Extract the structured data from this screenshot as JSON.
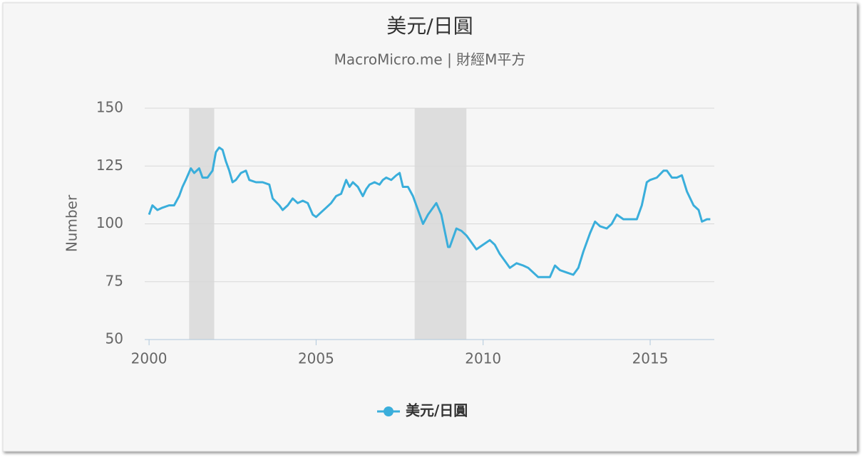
{
  "chart_data": {
    "type": "line",
    "title": "美元/日圓",
    "subtitle": "MacroMicro.me | 財經M平方",
    "y_label": "Number",
    "x": [
      2000.0,
      2000.1,
      2000.25,
      2000.4,
      2000.6,
      2000.75,
      2000.9,
      2001.0,
      2001.1,
      2001.25,
      2001.35,
      2001.5,
      2001.6,
      2001.75,
      2001.9,
      2002.0,
      2002.1,
      2002.2,
      2002.3,
      2002.4,
      2002.5,
      2002.6,
      2002.75,
      2002.9,
      2003.0,
      2003.2,
      2003.4,
      2003.6,
      2003.7,
      2003.9,
      2004.0,
      2004.15,
      2004.3,
      2004.45,
      2004.6,
      2004.75,
      2004.9,
      2005.0,
      2005.15,
      2005.3,
      2005.45,
      2005.6,
      2005.75,
      2005.9,
      2006.0,
      2006.1,
      2006.25,
      2006.4,
      2006.5,
      2006.6,
      2006.75,
      2006.9,
      2007.0,
      2007.1,
      2007.25,
      2007.4,
      2007.5,
      2007.6,
      2007.75,
      2007.9,
      2008.0,
      2008.2,
      2008.35,
      2008.5,
      2008.6,
      2008.75,
      2008.85,
      2008.95,
      2009.0,
      2009.2,
      2009.35,
      2009.5,
      2009.6,
      2009.8,
      2009.9,
      2010.0,
      2010.2,
      2010.35,
      2010.5,
      2010.65,
      2010.8,
      2011.0,
      2011.2,
      2011.35,
      2011.5,
      2011.65,
      2011.8,
      2012.0,
      2012.15,
      2012.3,
      2012.5,
      2012.7,
      2012.85,
      2013.0,
      2013.2,
      2013.35,
      2013.5,
      2013.7,
      2013.85,
      2014.0,
      2014.2,
      2014.4,
      2014.6,
      2014.75,
      2014.9,
      2015.0,
      2015.2,
      2015.4,
      2015.5,
      2015.65,
      2015.8,
      2015.95,
      2016.1,
      2016.3,
      2016.45,
      2016.55,
      2016.7,
      2016.8
    ],
    "series": [
      {
        "name": "美元/日圓",
        "color": "#3aaedb",
        "values": [
          104,
          108,
          106,
          107,
          108,
          108,
          112,
          116,
          119,
          124,
          122,
          124,
          120,
          120,
          123,
          131,
          133,
          132,
          127,
          123,
          118,
          119,
          122,
          123,
          119,
          118,
          118,
          117,
          111,
          108,
          106,
          108,
          111,
          109,
          110,
          109,
          104,
          103,
          105,
          107,
          109,
          112,
          113,
          119,
          116,
          118,
          116,
          112,
          115,
          117,
          118,
          117,
          119,
          120,
          119,
          121,
          122,
          116,
          116,
          112,
          108,
          100,
          104,
          107,
          109,
          104,
          97,
          90,
          90,
          98,
          97,
          95,
          93,
          89,
          90,
          91,
          93,
          91,
          87,
          84,
          81,
          83,
          82,
          81,
          79,
          77,
          77,
          77,
          82,
          80,
          79,
          78,
          81,
          88,
          96,
          101,
          99,
          98,
          100,
          104,
          102,
          102,
          102,
          108,
          118,
          119,
          120,
          123,
          123,
          120,
          120,
          121,
          114,
          108,
          106,
          101,
          102,
          102
        ]
      }
    ],
    "bands": [
      {
        "from": 2001.2,
        "to": 2001.95
      },
      {
        "from": 2007.95,
        "to": 2009.5
      }
    ],
    "band_color": "#dddddd",
    "xlim": [
      1999.87,
      2016.92
    ],
    "xticks": [
      2000,
      2005,
      2010,
      2015
    ],
    "ylim": [
      50,
      150
    ],
    "yticks": [
      50,
      75,
      100,
      125,
      150
    ],
    "grid": true,
    "legend": "bottom"
  }
}
